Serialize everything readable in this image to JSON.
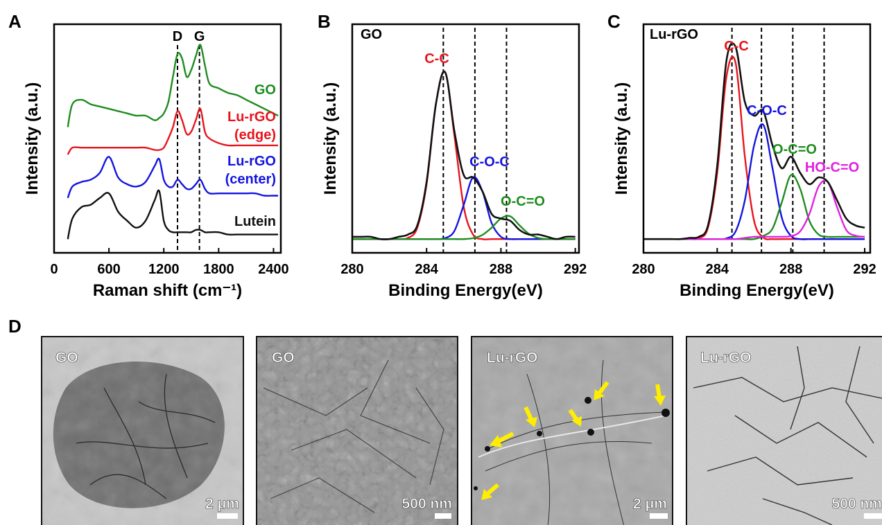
{
  "panel_labels": [
    "A",
    "B",
    "C",
    "D"
  ],
  "chart_data": [
    {
      "type": "line",
      "y_label": "Intensity (a.u.)",
      "x_label": "Raman shift (cm⁻¹)",
      "xlim": [
        0,
        2480
      ],
      "xticks": [
        0,
        600,
        1200,
        1800,
        2400
      ],
      "ylim": [
        0,
        1
      ],
      "x": [
        150,
        200,
        300,
        400,
        500,
        600,
        700,
        800,
        900,
        1000,
        1100,
        1150,
        1200,
        1250,
        1300,
        1350,
        1400,
        1450,
        1500,
        1550,
        1600,
        1650,
        1700,
        1800,
        1900,
        2000,
        2100,
        2200,
        2300,
        2400,
        2450
      ],
      "series": [
        {
          "name": "GO",
          "color": "#1e8c1e",
          "values": [
            0.55,
            0.65,
            0.67,
            0.65,
            0.64,
            0.63,
            0.62,
            0.61,
            0.6,
            0.6,
            0.58,
            0.59,
            0.61,
            0.66,
            0.77,
            0.87,
            0.85,
            0.77,
            0.8,
            0.86,
            0.91,
            0.82,
            0.74,
            0.72,
            0.7,
            0.69,
            0.67,
            0.65,
            0.63,
            0.61,
            0.6
          ]
        },
        {
          "name": "Lu-rGO (edge)",
          "color": "#e8141c",
          "values": [
            0.43,
            0.46,
            0.46,
            0.46,
            0.46,
            0.46,
            0.46,
            0.46,
            0.46,
            0.46,
            0.45,
            0.45,
            0.46,
            0.5,
            0.55,
            0.62,
            0.58,
            0.52,
            0.53,
            0.58,
            0.63,
            0.53,
            0.5,
            0.48,
            0.47,
            0.47,
            0.47,
            0.47,
            0.47,
            0.47,
            0.47
          ]
        },
        {
          "name": "Lu-rGO (center)",
          "color": "#1414e0",
          "values": [
            0.24,
            0.29,
            0.31,
            0.32,
            0.35,
            0.42,
            0.33,
            0.3,
            0.29,
            0.31,
            0.38,
            0.41,
            0.32,
            0.29,
            0.29,
            0.32,
            0.3,
            0.28,
            0.28,
            0.3,
            0.32,
            0.28,
            0.26,
            0.26,
            0.26,
            0.26,
            0.26,
            0.26,
            0.25,
            0.25,
            0.25
          ]
        },
        {
          "name": "Lutein",
          "color": "#111111",
          "values": [
            0.06,
            0.15,
            0.2,
            0.21,
            0.24,
            0.26,
            0.18,
            0.14,
            0.11,
            0.14,
            0.23,
            0.27,
            0.14,
            0.1,
            0.09,
            0.09,
            0.09,
            0.09,
            0.09,
            0.1,
            0.1,
            0.09,
            0.09,
            0.09,
            0.08,
            0.08,
            0.08,
            0.08,
            0.08,
            0.08,
            0.08
          ]
        }
      ],
      "peak_labels": [
        {
          "label": "D",
          "x": 1350
        },
        {
          "label": "G",
          "x": 1590
        }
      ]
    },
    {
      "type": "line",
      "title": "GO",
      "y_label": "Intensity (a.u.)",
      "x_label": "Binding Energy(eV)",
      "xlim": [
        280,
        292.2
      ],
      "xticks": [
        280,
        284,
        288,
        292
      ],
      "ylim": [
        0,
        1
      ],
      "x": [
        280,
        280.5,
        281,
        281.5,
        282,
        282.5,
        283,
        283.5,
        284,
        284.5,
        285,
        285.5,
        286,
        286.5,
        287,
        287.5,
        288,
        288.5,
        289,
        289.5,
        290,
        290.5,
        291,
        291.5,
        292
      ],
      "series": [
        {
          "color": "#111111",
          "values": [
            0.07,
            0.07,
            0.07,
            0.06,
            0.06,
            0.07,
            0.08,
            0.12,
            0.31,
            0.65,
            0.79,
            0.53,
            0.34,
            0.33,
            0.27,
            0.17,
            0.15,
            0.14,
            0.1,
            0.08,
            0.08,
            0.07,
            0.06,
            0.07,
            0.07
          ]
        },
        {
          "name": "C-C",
          "color": "#e8141c",
          "values": [
            0.06,
            0.06,
            0.06,
            0.06,
            0.06,
            0.06,
            0.065,
            0.11,
            0.3,
            0.65,
            0.79,
            0.51,
            0.2,
            0.08,
            0.06,
            0.06,
            0.06,
            0.06,
            0.06,
            0.06,
            0.06,
            0.06,
            0.06,
            0.06,
            0.06
          ]
        },
        {
          "name": "C-O-C",
          "color": "#1414e0",
          "values": [
            0.06,
            0.06,
            0.06,
            0.06,
            0.06,
            0.06,
            0.06,
            0.06,
            0.06,
            0.06,
            0.064,
            0.096,
            0.21,
            0.33,
            0.27,
            0.13,
            0.07,
            0.06,
            0.06,
            0.06,
            0.06,
            0.06,
            0.06,
            0.06,
            0.06
          ]
        },
        {
          "name": "O-C=O",
          "color": "#1e8c1e",
          "values": [
            0.06,
            0.06,
            0.06,
            0.06,
            0.06,
            0.06,
            0.06,
            0.06,
            0.06,
            0.06,
            0.06,
            0.06,
            0.06,
            0.064,
            0.078,
            0.11,
            0.15,
            0.16,
            0.12,
            0.083,
            0.065,
            0.06,
            0.06,
            0.06,
            0.06
          ]
        }
      ],
      "peak_positions": [
        284.9,
        286.6,
        288.3
      ]
    },
    {
      "type": "line",
      "title": "Lu-rGO",
      "y_label": "Intensity (a.u.)",
      "x_label": "Binding Energy(eV)",
      "xlim": [
        280,
        292.3
      ],
      "xticks": [
        280,
        284,
        288,
        292
      ],
      "ylim": [
        0,
        1
      ],
      "x": [
        280,
        280.5,
        281,
        281.5,
        282,
        282.5,
        283,
        283.5,
        284,
        284.5,
        285,
        285.5,
        286,
        286.5,
        287,
        287.5,
        288,
        288.5,
        289,
        289.5,
        290,
        290.5,
        291,
        291.5,
        292
      ],
      "series": [
        {
          "color": "#111111",
          "values": [
            0.06,
            0.06,
            0.06,
            0.06,
            0.06,
            0.065,
            0.07,
            0.12,
            0.38,
            0.84,
            0.9,
            0.66,
            0.6,
            0.62,
            0.47,
            0.37,
            0.42,
            0.35,
            0.3,
            0.33,
            0.31,
            0.23,
            0.15,
            0.12,
            0.11
          ]
        },
        {
          "name": "C-C",
          "color": "#e8141c",
          "values": [
            0.06,
            0.06,
            0.06,
            0.06,
            0.06,
            0.06,
            0.064,
            0.11,
            0.35,
            0.77,
            0.83,
            0.42,
            0.14,
            0.067,
            0.06,
            0.06,
            0.06,
            0.06,
            0.06,
            0.06,
            0.06,
            0.06,
            0.06,
            0.06,
            0.06
          ]
        },
        {
          "name": "C-O-C",
          "color": "#1414e0",
          "values": [
            0.06,
            0.06,
            0.06,
            0.06,
            0.06,
            0.06,
            0.06,
            0.06,
            0.06,
            0.063,
            0.094,
            0.23,
            0.47,
            0.56,
            0.37,
            0.155,
            0.074,
            0.06,
            0.06,
            0.06,
            0.06,
            0.06,
            0.06,
            0.06,
            0.06
          ]
        },
        {
          "name": "O-C=O",
          "color": "#1e8c1e",
          "values": [
            0.06,
            0.06,
            0.06,
            0.06,
            0.06,
            0.06,
            0.06,
            0.06,
            0.06,
            0.06,
            0.06,
            0.06,
            0.06,
            0.074,
            0.106,
            0.22,
            0.34,
            0.28,
            0.14,
            0.08,
            0.07,
            0.07,
            0.07,
            0.07,
            0.07
          ]
        },
        {
          "name": "HO-C=O",
          "color": "#e020e0",
          "values": [
            0.06,
            0.06,
            0.06,
            0.06,
            0.06,
            0.06,
            0.06,
            0.06,
            0.06,
            0.06,
            0.06,
            0.065,
            0.07,
            0.07,
            0.07,
            0.07,
            0.073,
            0.094,
            0.17,
            0.29,
            0.31,
            0.2,
            0.1,
            0.075,
            0.07
          ]
        }
      ],
      "peak_positions": [
        284.8,
        286.4,
        288.1,
        289.8
      ]
    }
  ],
  "images": [
    {
      "label": "GO",
      "scale": "2 μm"
    },
    {
      "label": "GO",
      "scale": "500 nm"
    },
    {
      "label": "Lu-rGO",
      "scale": "2 μm"
    },
    {
      "label": "Lu-rGO",
      "scale": "500 nm"
    }
  ]
}
